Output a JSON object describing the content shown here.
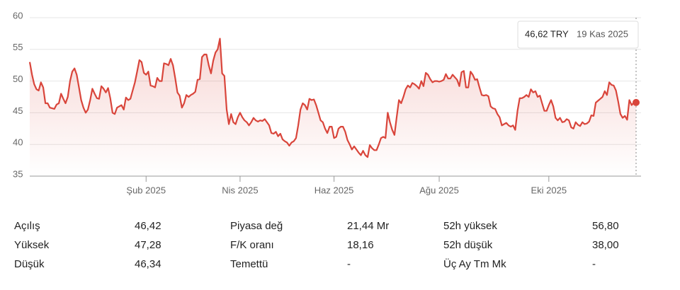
{
  "chart_data": {
    "type": "line",
    "series": [
      {
        "name": null,
        "color": "#d9453b",
        "values": [
          53,
          51,
          49.5,
          48.7,
          48.5,
          49.8,
          49,
          46.5,
          46.5,
          45.8,
          45.7,
          45.6,
          46.3,
          46.5,
          48,
          47.2,
          46.5,
          47.5,
          50,
          51.5,
          52,
          51,
          49,
          47,
          45.8,
          45,
          45.5,
          47,
          48.8,
          48,
          47.3,
          47.2,
          49.2,
          48.8,
          48.2,
          48.9,
          47.3,
          45,
          44.8,
          45.8,
          46,
          46.2,
          45.5,
          47.4,
          47,
          47.2,
          48.5,
          49.8,
          51.5,
          53.3,
          53,
          51.3,
          51,
          51.5,
          49.3,
          49.2,
          49,
          50.5,
          50,
          50,
          52.8,
          52.7,
          52.5,
          53.5,
          52.5,
          50.5,
          48.2,
          47.7,
          45.8,
          46.5,
          47.8,
          47.5,
          47.8,
          48,
          48.3,
          50.2,
          50.3,
          53.8,
          54.2,
          54.2,
          52.5,
          51.2,
          53.2,
          54.5,
          55,
          56.7,
          51.2,
          50.8,
          45.5,
          43.2,
          44.8,
          43.5,
          43.2,
          44.3,
          45,
          44.3,
          43.8,
          43.5,
          43,
          43.5,
          44.2,
          43.8,
          43.6,
          43.8,
          43.7,
          44,
          43.5,
          43,
          41.8,
          41.7,
          42,
          41.3,
          41.7,
          40.8,
          40.5,
          40.3,
          39.8,
          40.3,
          40.5,
          41,
          43,
          45.5,
          46.5,
          46.2,
          45.5,
          47.2,
          47,
          47.1,
          46.2,
          45,
          43.8,
          43.5,
          42.5,
          41.8,
          42.8,
          42.8,
          41,
          41.2,
          42.5,
          42.8,
          42.8,
          42,
          40.7,
          40,
          39.2,
          39.7,
          39.2,
          38.7,
          38.3,
          39,
          38.3,
          38,
          39.9,
          39.4,
          39.1,
          39.1,
          40,
          41,
          41.2,
          41,
          45,
          43.5,
          42.3,
          41.5,
          44.3,
          47,
          46.5,
          47.5,
          48.7,
          49.3,
          49,
          49.7,
          49.5,
          49.2,
          48.8,
          50,
          49.2,
          51.3,
          51,
          50.3,
          49.8,
          50,
          50,
          49.9,
          50,
          50.2,
          51.1,
          50.4,
          50.4,
          51,
          50.6,
          50.2,
          49.2,
          51.4,
          51.6,
          49,
          49,
          51.5,
          51,
          50.2,
          50.3,
          49,
          47.8,
          47.7,
          47.8,
          47.6,
          46,
          45.7,
          45.6,
          44.8,
          44.3,
          43,
          43.2,
          43.4,
          43,
          42.8,
          43,
          42.3,
          45.3,
          47.3,
          47.3,
          47.5,
          47.8,
          47.5,
          48.7,
          48.2,
          48.4,
          47.5,
          47.7,
          46.5,
          45.3,
          45.3,
          46.2,
          47,
          46,
          44.2,
          43.8,
          44.2,
          43.5,
          43.6,
          44,
          43.8,
          42.7,
          42.5,
          43.5,
          43.1,
          42.9,
          43.5,
          43.2,
          43.3,
          43.6,
          44.6,
          44.5,
          46.6,
          46.9,
          47.2,
          47.5,
          48.4,
          47.8,
          49.8,
          49.4,
          49.3,
          48.5,
          46.8,
          44.8,
          44.2,
          44.5,
          43.9,
          47,
          46.2,
          46.6,
          46.62
        ]
      }
    ],
    "xlim": [
      0,
      271
    ],
    "xticks": [
      {
        "value": 52,
        "label": "Şub 2025"
      },
      {
        "value": 94,
        "label": "Nis 2025"
      },
      {
        "value": 136,
        "label": "Haz 2025"
      },
      {
        "value": 183,
        "label": "Ağu 2025"
      },
      {
        "value": 232,
        "label": "Eki 2025"
      }
    ],
    "ylim": [
      35,
      60
    ],
    "yticks": [
      35,
      40,
      45,
      50,
      55,
      60
    ],
    "grid": true,
    "tooltip": {
      "value_label": "46,62 TRY",
      "date": "19 Kas 2025"
    }
  },
  "stats": {
    "rows": [
      [
        "Açılış",
        "46,42",
        "Piyasa değ",
        "21,44 Mr",
        "52h yüksek",
        "56,80"
      ],
      [
        "Yüksek",
        "47,28",
        "F/K oranı",
        "18,16",
        "52h düşük",
        "38,00"
      ],
      [
        "Düşük",
        "46,34",
        "Temettü",
        "-",
        "Üç Ay Tm Mk",
        "-"
      ]
    ]
  }
}
